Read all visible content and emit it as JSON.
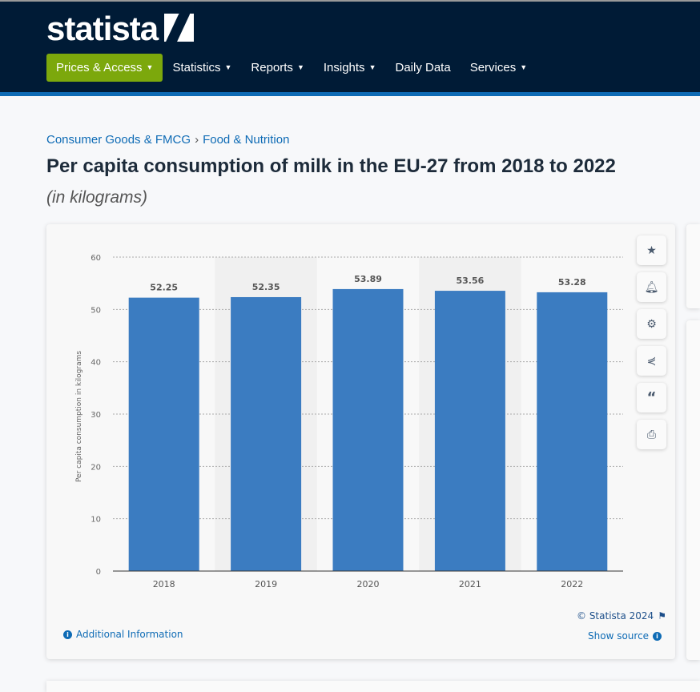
{
  "header": {
    "logo": "statista",
    "nav": [
      {
        "label": "Prices & Access",
        "active": true,
        "caret": true
      },
      {
        "label": "Statistics",
        "caret": true
      },
      {
        "label": "Reports",
        "caret": true
      },
      {
        "label": "Insights",
        "caret": true
      },
      {
        "label": "Daily Data",
        "caret": false
      },
      {
        "label": "Services",
        "caret": true
      }
    ]
  },
  "breadcrumb": [
    "Consumer Goods & FMCG",
    "Food & Nutrition"
  ],
  "title": "Per capita consumption of milk in the EU-27 from 2018 to 2022",
  "subtitle": "(in kilograms)",
  "tools": [
    "star-icon",
    "bell-icon",
    "gear-icon",
    "share-icon",
    "quote-icon",
    "print-icon"
  ],
  "footer": {
    "additional_info": "Additional Information",
    "copyright": "© Statista 2024",
    "show_source": "Show source"
  },
  "colors": {
    "bar": "#3b7cc1",
    "nav_bg": "#001b36",
    "active_nav": "#7ca80c",
    "link": "#0e6bb5"
  },
  "chart_data": {
    "type": "bar",
    "categories": [
      "2018",
      "2019",
      "2020",
      "2021",
      "2022"
    ],
    "values": [
      52.25,
      52.35,
      53.89,
      53.56,
      53.28
    ],
    "data_labels": [
      "52.25",
      "52.35",
      "53.89",
      "53.56",
      "53.28"
    ],
    "xlabel": "",
    "ylabel": "Per capita consumption in kilograms",
    "ylim": [
      0,
      60
    ],
    "yticks": [
      0,
      10,
      20,
      30,
      40,
      50,
      60
    ],
    "grid": true
  }
}
